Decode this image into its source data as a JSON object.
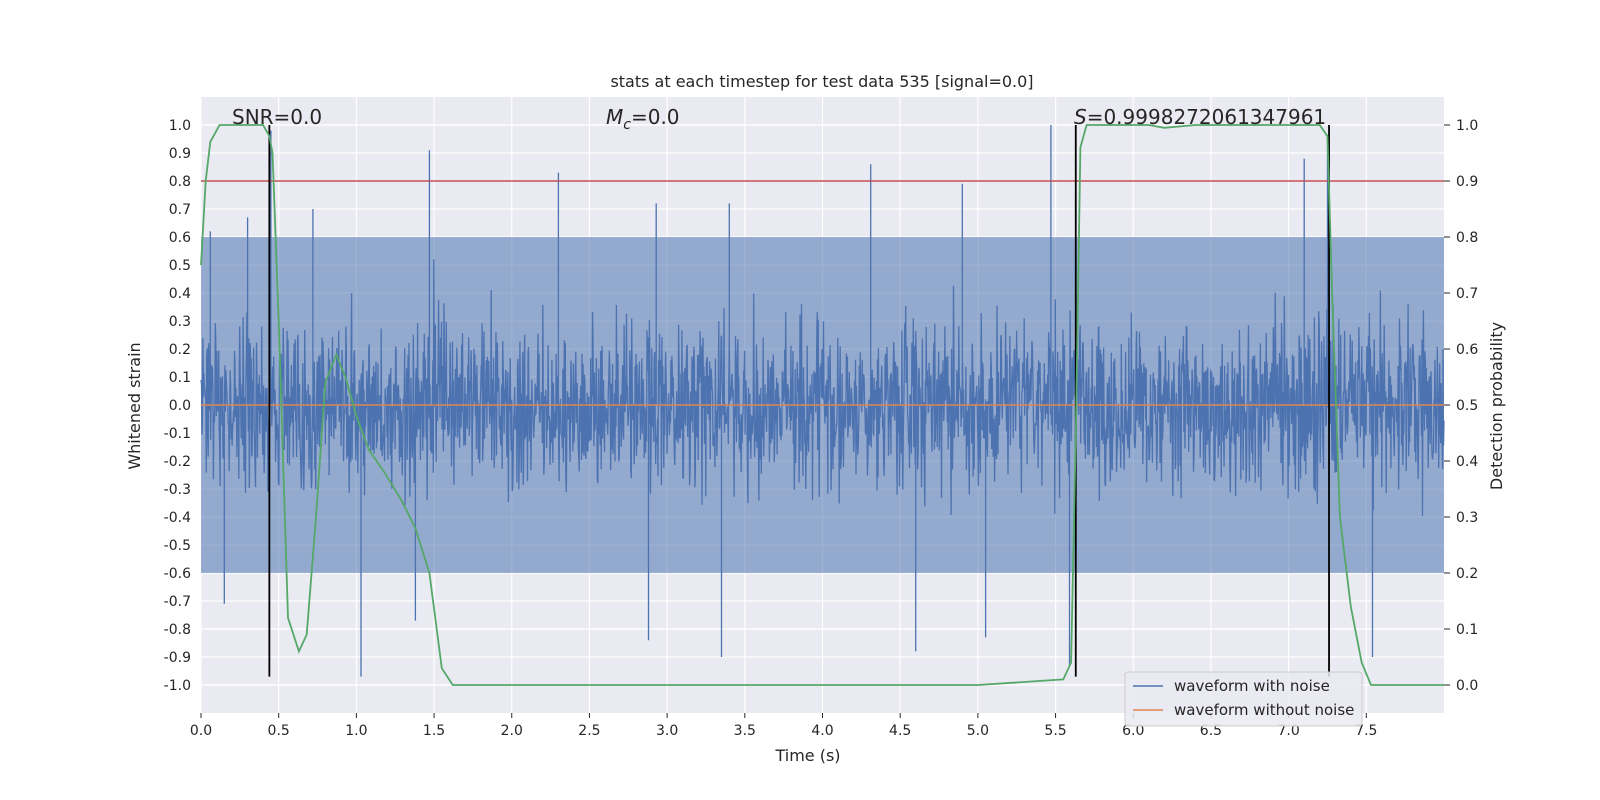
{
  "chart_data": {
    "type": "line",
    "title": "stats at each timestep for test data 535 [signal=0.0]",
    "xlabel": "Time (s)",
    "ylabel_left": "Whitened strain",
    "ylabel_right": "Detection probability",
    "xlim": [
      0.0,
      8.0
    ],
    "ylim_left": [
      -1.1,
      1.1
    ],
    "ylim_right": [
      -0.05,
      1.05
    ],
    "x_ticks": [
      "0.0",
      "0.5",
      "1.0",
      "1.5",
      "2.0",
      "2.5",
      "3.0",
      "3.5",
      "4.0",
      "4.5",
      "5.0",
      "5.5",
      "6.0",
      "6.5",
      "7.0",
      "7.5"
    ],
    "y_left_ticks": [
      "1.0",
      "0.9",
      "0.8",
      "0.7",
      "0.6",
      "0.5",
      "0.4",
      "0.3",
      "0.2",
      "0.1",
      "0.0",
      "-0.1",
      "-0.2",
      "-0.3",
      "-0.4",
      "-0.5",
      "-0.6",
      "-0.7",
      "-0.8",
      "-0.9",
      "-1.0"
    ],
    "y_right_ticks": [
      "1.0",
      "0.9",
      "0.8",
      "0.7",
      "0.6",
      "0.5",
      "0.4",
      "0.3",
      "0.2",
      "0.1",
      "0.0"
    ],
    "grid": true,
    "legend_position": "bottom-right",
    "annotations": {
      "snr": "SNR=0.0",
      "mc_symbol": "M",
      "mc_subscript": "c",
      "mc_value": "=0.0",
      "s_symbol": "S",
      "s_value": "=0.9998272061347961"
    },
    "threshold_line": {
      "y": 0.8,
      "color": "#c44e52"
    },
    "vertical_markers_x": [
      0.44,
      5.63,
      7.26
    ],
    "series": [
      {
        "name": "waveform with noise",
        "color": "#4c72b0",
        "description_level": "dense noise, envelope about ±0.6 with spikes",
        "spikes": [
          {
            "x": 0.06,
            "y": 0.62
          },
          {
            "x": 0.3,
            "y": 0.67
          },
          {
            "x": 0.45,
            "y": 0.98
          },
          {
            "x": 0.72,
            "y": 0.7
          },
          {
            "x": 1.47,
            "y": 0.91
          },
          {
            "x": 2.3,
            "y": 0.83
          },
          {
            "x": 2.93,
            "y": 0.72
          },
          {
            "x": 3.4,
            "y": 0.72
          },
          {
            "x": 4.31,
            "y": 0.86
          },
          {
            "x": 4.9,
            "y": 0.79
          },
          {
            "x": 5.47,
            "y": 1.0
          },
          {
            "x": 7.25,
            "y": 0.96
          },
          {
            "x": 7.1,
            "y": 0.88
          },
          {
            "x": 1.03,
            "y": -0.97
          },
          {
            "x": 2.88,
            "y": -0.84
          },
          {
            "x": 3.35,
            "y": -0.9
          },
          {
            "x": 4.6,
            "y": -0.88
          },
          {
            "x": 5.05,
            "y": -0.83
          },
          {
            "x": 5.59,
            "y": -0.93
          },
          {
            "x": 7.54,
            "y": -0.9
          },
          {
            "x": 0.15,
            "y": -0.71
          },
          {
            "x": 1.38,
            "y": -0.77
          }
        ]
      },
      {
        "name": "waveform without noise",
        "color": "#dd8452",
        "x": [
          0.0,
          8.0
        ],
        "y": [
          0.0,
          0.0
        ]
      },
      {
        "name": "",
        "color": "#55a868",
        "axis": "right",
        "x": [
          0.0,
          0.03,
          0.06,
          0.12,
          0.18,
          0.25,
          0.33,
          0.4,
          0.44,
          0.46,
          0.5,
          0.56,
          0.63,
          0.68,
          0.74,
          0.8,
          0.87,
          0.93,
          1.0,
          1.08,
          1.18,
          1.29,
          1.38,
          1.47,
          1.55,
          1.62,
          1.7,
          2.0,
          3.0,
          4.0,
          5.0,
          5.55,
          5.6,
          5.63,
          5.66,
          5.7,
          5.78,
          5.9,
          6.1,
          6.2,
          6.4,
          7.0,
          7.2,
          7.25,
          7.28,
          7.33,
          7.4,
          7.47,
          7.53,
          7.6,
          8.0
        ],
        "y": [
          0.75,
          0.9,
          0.97,
          1.0,
          1.0,
          1.0,
          1.0,
          1.0,
          0.98,
          0.95,
          0.65,
          0.12,
          0.06,
          0.09,
          0.3,
          0.54,
          0.59,
          0.55,
          0.48,
          0.42,
          0.38,
          0.33,
          0.28,
          0.2,
          0.03,
          0.0,
          0.0,
          0.0,
          0.0,
          0.0,
          0.0,
          0.01,
          0.04,
          0.45,
          0.96,
          1.0,
          1.0,
          1.0,
          1.0,
          0.995,
          1.0,
          1.0,
          1.0,
          0.98,
          0.7,
          0.3,
          0.14,
          0.04,
          0.0,
          0.0,
          0.0
        ]
      }
    ]
  }
}
